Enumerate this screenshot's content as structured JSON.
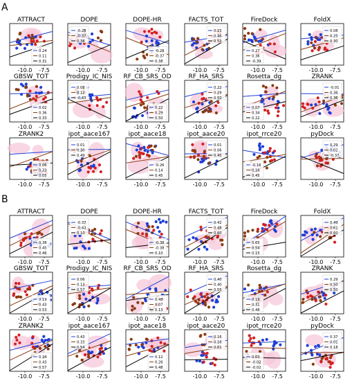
{
  "colors": {
    "blue": "#1f3fd6",
    "brown": "#8b3a0f",
    "red": "#d42020",
    "pink": "#f7c4d8",
    "black": "#000000"
  },
  "panel_labels": [
    "A",
    "B"
  ],
  "chart_data": [
    {
      "panel": "A",
      "type": "scatter",
      "xticks": [
        "-10.0",
        "-7.5"
      ],
      "subplots": [
        {
          "title": "ATTRACT",
          "legend": [
            "0.24",
            "0.11",
            "0.31"
          ]
        },
        {
          "title": "DOPE",
          "legend": [
            "-0.28",
            "-0.37",
            "0.38"
          ]
        },
        {
          "title": "DOPE-HR",
          "legend": [
            "-0.28",
            "-0.37",
            "0.38"
          ]
        },
        {
          "title": "FACTS_TOT",
          "legend": [
            "0.15",
            "0.46",
            "0.53"
          ]
        },
        {
          "title": "FireDock",
          "legend": [
            "0.27",
            "0.36",
            "-0.39"
          ]
        },
        {
          "title": "FoldX",
          "legend": [
            "0.08",
            "0.25",
            "0.30"
          ]
        },
        {
          "title": "GBSW_TOT",
          "legend": [
            "0.02",
            "0.36",
            "0.33"
          ]
        },
        {
          "title": "Prodigy_IC_NIS",
          "legend": [
            "0.08",
            "0.12",
            "-0.43"
          ]
        },
        {
          "title": "RF_CB_SRS_OD",
          "legend": [
            "0.22",
            "0.29",
            "0.50"
          ]
        },
        {
          "title": "RF_HA_SRS",
          "legend": [
            "0.22",
            "0.29",
            "0.50"
          ]
        },
        {
          "title": "Rosetta_dg",
          "legend": [
            "0.07",
            "0.34",
            "0.22"
          ]
        },
        {
          "title": "ZRANK",
          "legend": [
            "-0.01",
            "0.36",
            "0.36"
          ]
        },
        {
          "title": "ZRANK2",
          "legend": [
            "0.06",
            "0.33",
            "0.05"
          ]
        },
        {
          "title": "ipot_aace167",
          "legend": [
            "0.01",
            "0.30",
            "0.49"
          ]
        },
        {
          "title": "ipot_aace18",
          "legend": [
            "-0.26",
            "0.14",
            "0.45"
          ]
        },
        {
          "title": "ipot_aace20",
          "legend": [
            "0.01",
            "0.06",
            "0.45"
          ]
        },
        {
          "title": "ipot_rrce20",
          "legend": [
            "-0.16",
            "0.16",
            "0.45"
          ]
        },
        {
          "title": "pyDock",
          "legend": [
            "0.29",
            "0.02",
            "-0.37"
          ]
        }
      ]
    },
    {
      "panel": "B",
      "type": "scatter",
      "xticks": [
        "-10.0",
        "-7.5"
      ],
      "subplots": [
        {
          "title": "ATTRACT",
          "legend": [
            "0.38",
            "0.45",
            "0.46"
          ]
        },
        {
          "title": "DOPE",
          "legend": [
            "-0.37",
            "-0.43",
            "0.10"
          ]
        },
        {
          "title": "DOPE-HR",
          "legend": [
            "-0.38",
            "-0.38",
            "0.10"
          ]
        },
        {
          "title": "FACTS_TOT",
          "legend": [
            "0.42",
            "0.48",
            "0.60"
          ]
        },
        {
          "title": "FireDock",
          "legend": [
            "0.65",
            "0.54",
            "0.15"
          ]
        },
        {
          "title": "FoldX",
          "legend": [
            "0.49",
            "0.61",
            "0.60"
          ]
        },
        {
          "title": "GBSW_TOT",
          "legend": [
            "0.19",
            "0.43",
            "0.53"
          ]
        },
        {
          "title": "Prodigy_IC_NIS",
          "legend": [
            "0.06",
            "0.13",
            "0.57"
          ]
        },
        {
          "title": "RF_CB_SRS_OD",
          "legend": [
            "0.48",
            "0.07",
            "0.13"
          ]
        },
        {
          "title": "RF_HA_SRS",
          "legend": [
            "0.40",
            "0.40",
            "0.55"
          ]
        },
        {
          "title": "Rosetta_dg",
          "legend": [
            "0.19",
            "0.31",
            "0.48"
          ]
        },
        {
          "title": "ZRANK",
          "legend": [
            "0.29",
            "0.50",
            "0.50"
          ]
        },
        {
          "title": "ZRANK2",
          "legend": [
            "0.24",
            "0.43",
            "0.57"
          ]
        },
        {
          "title": "ipot_aace167",
          "legend": [
            "0.43",
            "0.33",
            "0.54"
          ]
        },
        {
          "title": "ipot_aace18",
          "legend": [
            "0.12",
            "0.26",
            "0.48"
          ]
        },
        {
          "title": "ipot_aace20",
          "legend": [
            "0.16",
            "0.16",
            "0.01"
          ]
        },
        {
          "title": "ipot_rrce20",
          "legend": [
            "0.03",
            "-0.02",
            "-0.02"
          ]
        },
        {
          "title": "pyDock",
          "legend": [
            "0.37",
            "0.01",
            "0.18"
          ]
        }
      ]
    }
  ]
}
